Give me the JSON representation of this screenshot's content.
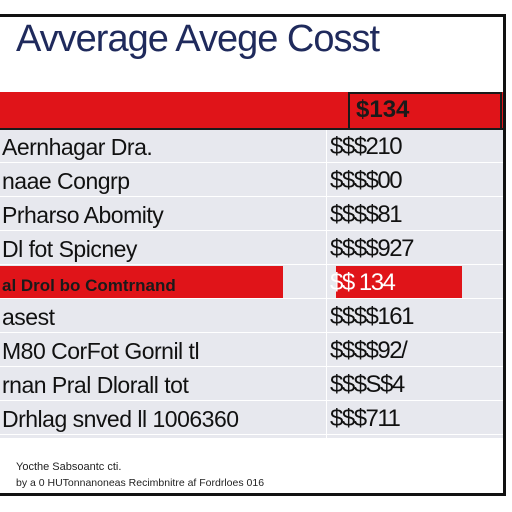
{
  "chart_data": {
    "type": "table",
    "title": "Avverage Avege Cosst",
    "header_value": "$134",
    "rows": [
      {
        "label": "Aernhagar Dra.",
        "value": "$$$210"
      },
      {
        "label": "naae Congrp",
        "value": "$$$$00"
      },
      {
        "label": "Prharso Abomity",
        "value": "$$$$81"
      },
      {
        "label": "Dl fot Spicney",
        "value": "$$$$927"
      },
      {
        "label": "al Drol bo Comtrnand",
        "value": "$$ 134",
        "highlight": true
      },
      {
        "label": "asest",
        "value": "$$$$161"
      },
      {
        "label": "M80 CorFot Gornil tl",
        "value": "$$$$92/"
      },
      {
        "label": "rnan Pral Dlorall tot",
        "value": "$$$S$4"
      },
      {
        "label": "Drhlag snved ll 1006360",
        "value": "$$$711"
      }
    ],
    "highlight_color": "#e01419"
  },
  "footnotes": [
    "Yocthe Sabsoantc cti.",
    "by a 0 HUTonnanoneas Recimbnitre af Fordrloes 016"
  ]
}
